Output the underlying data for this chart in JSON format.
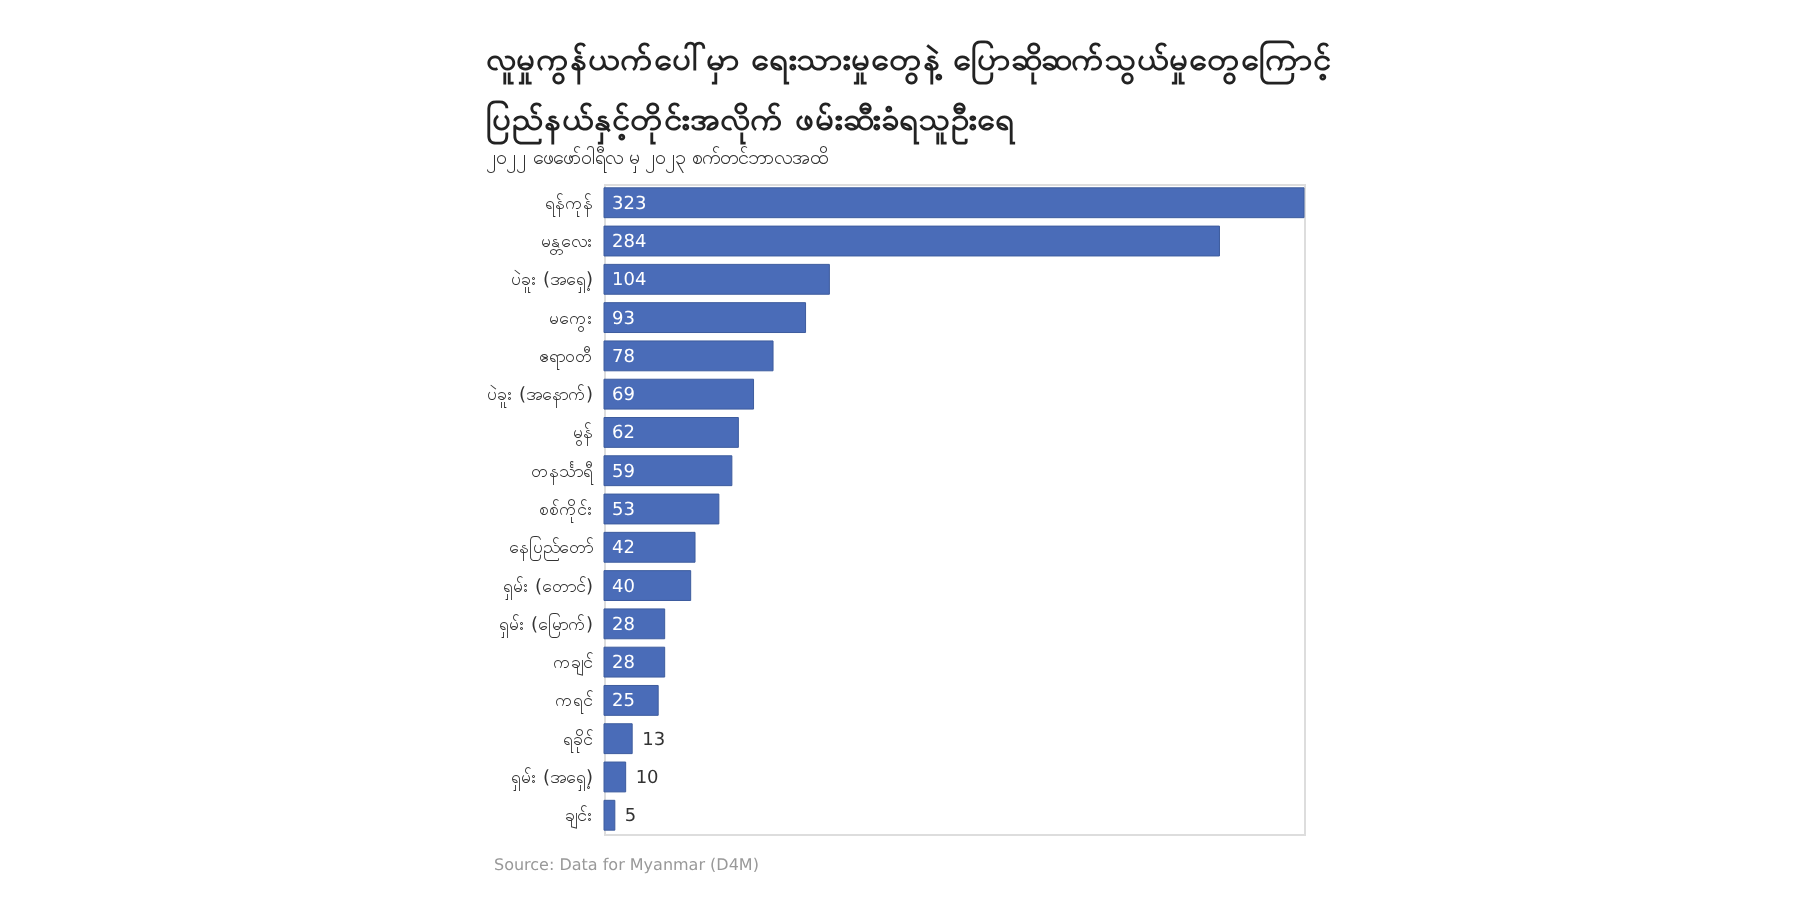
{
  "chart_data": {
    "type": "bar",
    "orientation": "horizontal",
    "title": "လူမှုကွန်ယက်ပေါ်မှာ ရေးသားမှုတွေနဲ့ ပြောဆိုဆက်သွယ်မှုတွေကြောင့် ပြည်နယ်နှင့်တိုင်းအလိုက် ဖမ်းဆီးခံရသူဦးရေ",
    "subtitle": "၂၀၂၂ ဖေဖော်ဝါရီလ မှ ၂၀၂၃ စက်တင်ဘာလအထိ",
    "categories": [
      "ရန်ကုန်",
      "မန္တလေး",
      "ပဲခူး (အရှေ့)",
      "မကွေး",
      "ဧရာဝတီ",
      "ပဲခူး (အနောက်)",
      "မွန်",
      "တနင်္သာရီ",
      "စစ်ကိုင်း",
      "နေပြည်တော်",
      "ရှမ်း (တောင်)",
      "ရှမ်း (မြောက်)",
      "ကချင်",
      "ကရင်",
      "ရခိုင်",
      "ရှမ်း (အရှေ့)",
      "ချင်း"
    ],
    "values": [
      323,
      284,
      104,
      93,
      78,
      69,
      62,
      59,
      53,
      42,
      40,
      28,
      28,
      25,
      13,
      10,
      5
    ],
    "color": "#4a6cb8",
    "data_labels": true,
    "grid": false,
    "annotations": [
      "Source: Data for Myanmar (D4M)"
    ]
  }
}
